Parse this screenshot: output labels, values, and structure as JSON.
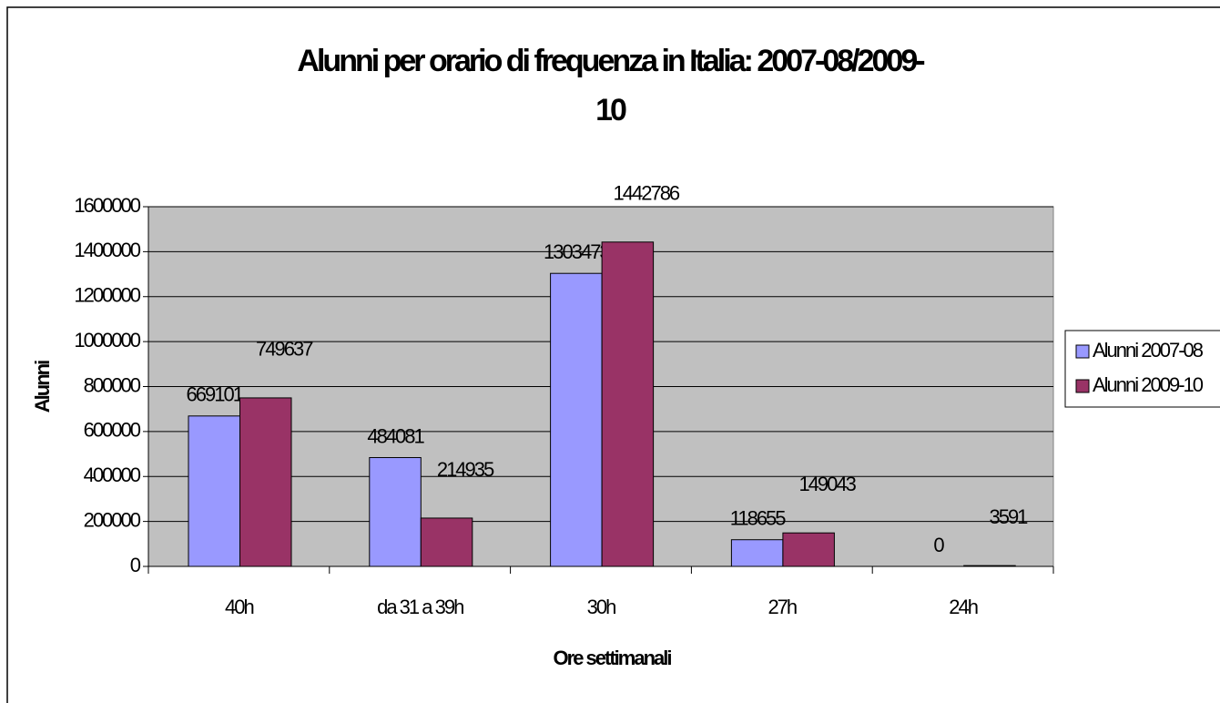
{
  "chart_data": {
    "type": "bar",
    "title": "Alunni per orario di frequenza in Italia: 2007-08/2009-10",
    "x_label": "Ore settimanali",
    "y_label": "Alunni",
    "categories": [
      "40h",
      "da 31 a 39h",
      "30h",
      "27h",
      "24h"
    ],
    "series": [
      {
        "name": "Alunni 2007-08",
        "color": "#9999ff",
        "values": [
          669101,
          484081,
          1303473,
          118655,
          0
        ]
      },
      {
        "name": "Alunni 2009-10",
        "color": "#993366",
        "values": [
          749637,
          214935,
          1442786,
          149043,
          3591
        ]
      }
    ],
    "ylim": [
      0,
      1600000
    ],
    "yticks": [
      0,
      200000,
      400000,
      600000,
      800000,
      1000000,
      1200000,
      1400000,
      1600000
    ],
    "grid": true,
    "legend": "right",
    "plot_background": "#c0c0c0"
  }
}
